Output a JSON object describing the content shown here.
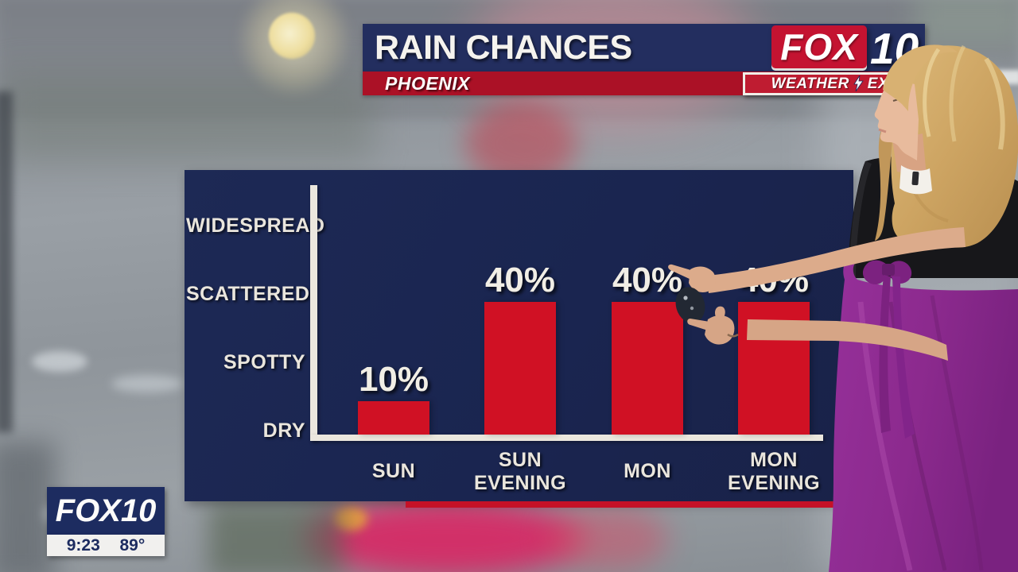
{
  "header": {
    "title": "RAIN CHANCES",
    "location": "PHOENIX"
  },
  "network_logo": {
    "fox": "FOX",
    "number": "10"
  },
  "weather_banner": {
    "word1": "WEATHER",
    "word2": "EXP"
  },
  "station_bug": {
    "logo": "FOX10",
    "time": "9:23",
    "temperature": "89°"
  },
  "chart_data": {
    "type": "bar",
    "title": "RAIN CHANCES",
    "location": "PHOENIX",
    "categories": [
      "SUN",
      "SUN EVENING",
      "MON",
      "MON EVENING"
    ],
    "values": [
      10,
      40,
      40,
      40
    ],
    "value_labels": [
      "10%",
      "40%",
      "40%",
      "40%"
    ],
    "y_tick_labels": [
      "WIDESPREAD",
      "SCATTERED",
      "SPOTTY",
      "DRY"
    ],
    "ylim": [
      0,
      75
    ],
    "grid": false,
    "legend": "none",
    "colors": {
      "bar": "#d01124",
      "panel": "#1a2550",
      "axis": "#ebe7de",
      "text": "#eae6dd",
      "banner_red": "#ab1126",
      "header_navy": "#232e5f"
    }
  }
}
